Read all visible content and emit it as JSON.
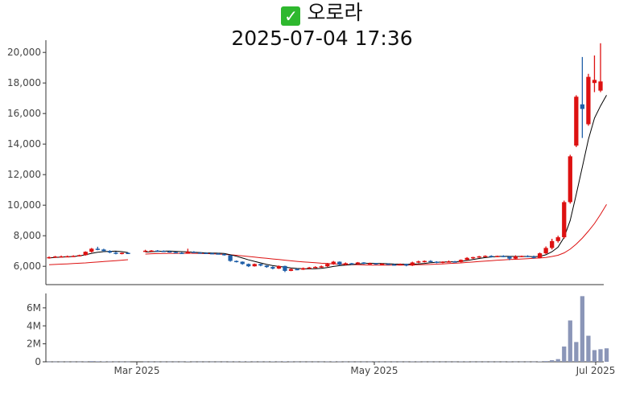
{
  "header": {
    "icon": "check-mark-icon",
    "name": "오로라",
    "timestamp": "2025-07-04 17:36"
  },
  "colors": {
    "up": "#dd1111",
    "down": "#1f5fa8",
    "ma_short": "#000000",
    "ma_long": "#dd1111",
    "volume": "#8b96b8"
  },
  "chart_data": [
    {
      "type": "candlestick",
      "title": "",
      "x_tick_labels": [
        "Mar 2025",
        "May 2025",
        "Jul 2025"
      ],
      "y_tick_labels": [
        "6,000",
        "8,000",
        "10,000",
        "12,000",
        "14,000",
        "16,000",
        "18,000",
        "20,000"
      ],
      "y_ticks": [
        6000,
        8000,
        10000,
        12000,
        14000,
        16000,
        18000,
        20000
      ],
      "ylim": [
        4800,
        20800
      ],
      "ohlc": [
        [
          6550,
          6640,
          6500,
          6600
        ],
        [
          6600,
          6680,
          6560,
          6640
        ],
        [
          6640,
          6700,
          6600,
          6650
        ],
        [
          6650,
          6700,
          6620,
          6660
        ],
        [
          6660,
          6720,
          6630,
          6680
        ],
        [
          6680,
          6760,
          6650,
          6730
        ],
        [
          6730,
          6980,
          6700,
          6950
        ],
        [
          6950,
          7200,
          6900,
          7150
        ],
        [
          7150,
          7280,
          7050,
          7100
        ],
        [
          7100,
          7150,
          6950,
          7000
        ],
        [
          7000,
          7050,
          6850,
          6900
        ],
        [
          6900,
          6950,
          6780,
          6820
        ],
        [
          6820,
          6900,
          6780,
          6880
        ],
        [
          6880,
          6920,
          6820,
          6860
        ],
        [
          6980,
          7080,
          6950,
          7020
        ],
        [
          7020,
          7060,
          6980,
          7030
        ],
        [
          7030,
          7060,
          6990,
          7010
        ],
        [
          7010,
          7040,
          6950,
          6980
        ],
        [
          6980,
          7020,
          6900,
          6930
        ],
        [
          6930,
          6960,
          6860,
          6880
        ],
        [
          6880,
          6920,
          6840,
          6860
        ],
        [
          6860,
          7150,
          6840,
          6950
        ],
        [
          6950,
          6990,
          6880,
          6900
        ],
        [
          6900,
          6940,
          6860,
          6880
        ],
        [
          6880,
          6920,
          6840,
          6860
        ],
        [
          6860,
          6900,
          6800,
          6840
        ],
        [
          6840,
          6870,
          6780,
          6800
        ],
        [
          6800,
          6830,
          6700,
          6720
        ],
        [
          6720,
          6740,
          6300,
          6350
        ],
        [
          6350,
          6380,
          6250,
          6300
        ],
        [
          6300,
          6320,
          6100,
          6150
        ],
        [
          6150,
          6180,
          5950,
          6000
        ],
        [
          6000,
          6180,
          5980,
          6150
        ],
        [
          6150,
          6170,
          6000,
          6050
        ],
        [
          6050,
          6070,
          5900,
          5950
        ],
        [
          5950,
          6000,
          5800,
          5850
        ],
        [
          5850,
          6050,
          5820,
          6020
        ],
        [
          6020,
          6040,
          5620,
          5700
        ],
        [
          5700,
          5860,
          5680,
          5820
        ],
        [
          5820,
          5860,
          5740,
          5780
        ],
        [
          5780,
          5920,
          5760,
          5880
        ],
        [
          5880,
          5960,
          5840,
          5920
        ],
        [
          5920,
          6000,
          5880,
          5960
        ],
        [
          5960,
          6050,
          5900,
          6000
        ],
        [
          6000,
          6220,
          5950,
          6150
        ],
        [
          6150,
          6350,
          6100,
          6300
        ],
        [
          6300,
          6320,
          6050,
          6100
        ],
        [
          6100,
          6250,
          6050,
          6200
        ],
        [
          6200,
          6220,
          6100,
          6150
        ],
        [
          6150,
          6280,
          6120,
          6250
        ],
        [
          6250,
          6270,
          6130,
          6180
        ],
        [
          6180,
          6230,
          6120,
          6200
        ],
        [
          6200,
          6220,
          6100,
          6150
        ],
        [
          6150,
          6200,
          6100,
          6170
        ],
        [
          6170,
          6200,
          6080,
          6120
        ],
        [
          6120,
          6160,
          6050,
          6100
        ],
        [
          6100,
          6180,
          6080,
          6150
        ],
        [
          6150,
          6170,
          6000,
          6050
        ],
        [
          6050,
          6300,
          6020,
          6250
        ],
        [
          6250,
          6370,
          6200,
          6320
        ],
        [
          6320,
          6380,
          6250,
          6350
        ],
        [
          6350,
          6400,
          6280,
          6300
        ],
        [
          6300,
          6330,
          6200,
          6250
        ],
        [
          6250,
          6320,
          6200,
          6300
        ],
        [
          6300,
          6380,
          6250,
          6320
        ],
        [
          6320,
          6350,
          6250,
          6280
        ],
        [
          6280,
          6450,
          6250,
          6420
        ],
        [
          6420,
          6600,
          6380,
          6550
        ],
        [
          6550,
          6620,
          6480,
          6600
        ],
        [
          6600,
          6680,
          6550,
          6650
        ],
        [
          6650,
          6720,
          6600,
          6680
        ],
        [
          6680,
          6720,
          6580,
          6620
        ],
        [
          6620,
          6700,
          6600,
          6680
        ],
        [
          6680,
          6720,
          6600,
          6640
        ],
        [
          6640,
          6680,
          6400,
          6500
        ],
        [
          6500,
          6720,
          6480,
          6650
        ],
        [
          6650,
          6700,
          6600,
          6680
        ],
        [
          6680,
          6720,
          6600,
          6640
        ],
        [
          6640,
          6700,
          6500,
          6550
        ],
        [
          6550,
          6900,
          6520,
          6850
        ],
        [
          6850,
          7300,
          6800,
          7200
        ],
        [
          7200,
          7800,
          7100,
          7650
        ],
        [
          7650,
          8000,
          7550,
          7900
        ],
        [
          7900,
          10300,
          7800,
          10200
        ],
        [
          10200,
          13300,
          10100,
          13200
        ],
        [
          13900,
          17200,
          13800,
          17100
        ],
        [
          16600,
          19700,
          14400,
          16300
        ],
        [
          15300,
          18600,
          15200,
          18400
        ],
        [
          18000,
          19800,
          17400,
          18200
        ],
        [
          17500,
          20600,
          17400,
          18100
        ]
      ],
      "ma_short": [
        6550,
        6575,
        6600,
        6620,
        6640,
        6680,
        6750,
        6850,
        6920,
        6960,
        6980,
        6990,
        6960,
        6900,
        6930,
        6950,
        6970,
        6990,
        7000,
        6980,
        6960,
        6940,
        6920,
        6900,
        6880,
        6870,
        6860,
        6840,
        6760,
        6660,
        6540,
        6420,
        6320,
        6220,
        6120,
        6040,
        5990,
        5940,
        5890,
        5860,
        5840,
        5830,
        5840,
        5870,
        5920,
        5990,
        6040,
        6080,
        6110,
        6150,
        6180,
        6200,
        6190,
        6180,
        6170,
        6150,
        6140,
        6130,
        6140,
        6160,
        6190,
        6230,
        6260,
        6280,
        6290,
        6300,
        6320,
        6380,
        6440,
        6510,
        6570,
        6610,
        6640,
        6660,
        6650,
        6640,
        6640,
        6640,
        6630,
        6650,
        6750,
        6950,
        7250,
        7900,
        9000,
        10700,
        12500,
        14300,
        15700,
        16500,
        17200
      ],
      "ma_long": [
        6100,
        6120,
        6140,
        6160,
        6180,
        6200,
        6220,
        6250,
        6280,
        6310,
        6340,
        6370,
        6400,
        6430,
        6800,
        6820,
        6830,
        6840,
        6850,
        6850,
        6850,
        6850,
        6850,
        6840,
        6830,
        6820,
        6800,
        6780,
        6750,
        6720,
        6680,
        6640,
        6600,
        6560,
        6520,
        6480,
        6440,
        6400,
        6360,
        6320,
        6290,
        6260,
        6230,
        6200,
        6180,
        6160,
        6140,
        6120,
        6110,
        6100,
        6090,
        6080,
        6080,
        6080,
        6080,
        6080,
        6080,
        6080,
        6090,
        6100,
        6110,
        6120,
        6140,
        6160,
        6180,
        6200,
        6220,
        6250,
        6280,
        6310,
        6340,
        6370,
        6400,
        6420,
        6440,
        6460,
        6480,
        6500,
        6520,
        6540,
        6580,
        6640,
        6720,
        6880,
        7120,
        7450,
        7850,
        8300,
        8800,
        9400,
        10050
      ],
      "volume_tick_labels": [
        "0",
        "2M",
        "4M",
        "6M"
      ],
      "volume_ticks": [
        0,
        2000000,
        4000000,
        6000000
      ],
      "volume_ylim": [
        0,
        7600000
      ],
      "volume": [
        20000,
        20000,
        20000,
        20000,
        20000,
        20000,
        30000,
        80000,
        60000,
        40000,
        30000,
        20000,
        20000,
        20000,
        20000,
        20000,
        20000,
        20000,
        20000,
        20000,
        20000,
        40000,
        20000,
        20000,
        20000,
        20000,
        20000,
        20000,
        30000,
        30000,
        40000,
        40000,
        30000,
        30000,
        30000,
        40000,
        30000,
        50000,
        30000,
        20000,
        20000,
        20000,
        20000,
        20000,
        30000,
        40000,
        30000,
        20000,
        20000,
        20000,
        20000,
        20000,
        20000,
        20000,
        20000,
        20000,
        20000,
        20000,
        30000,
        30000,
        20000,
        20000,
        20000,
        20000,
        20000,
        20000,
        30000,
        30000,
        20000,
        20000,
        20000,
        20000,
        20000,
        20000,
        30000,
        20000,
        20000,
        20000,
        20000,
        40000,
        80000,
        180000,
        300000,
        1700000,
        4600000,
        2200000,
        7300000,
        2900000,
        1300000,
        1400000,
        1500000
      ]
    }
  ]
}
